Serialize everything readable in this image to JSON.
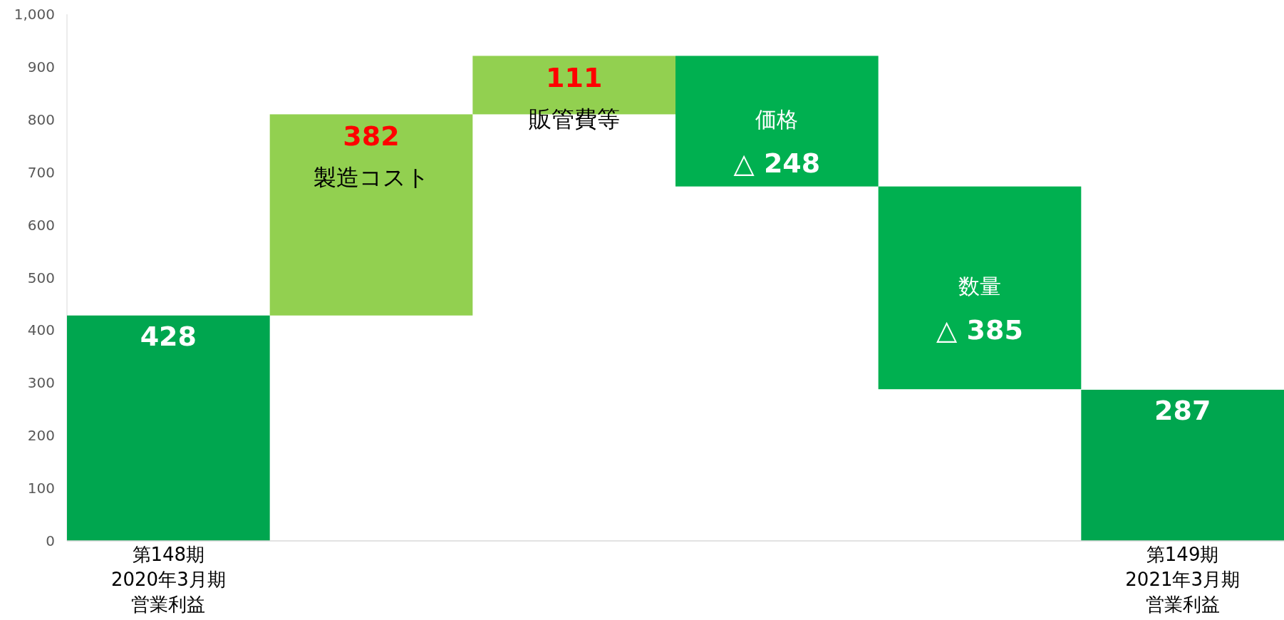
{
  "chart_data": {
    "type": "bar",
    "categories": [
      "第148期2020年3月期営業利益",
      "製造コスト",
      "販管費等",
      "価格",
      "数量",
      "第149期2021年3月期営業利益"
    ],
    "values": [
      428,
      382,
      111,
      -248,
      -385,
      287
    ],
    "base": [
      0,
      428,
      810,
      921,
      673,
      0
    ],
    "colors": [
      "#00a64f",
      "#92d050",
      "#92d050",
      "#00b050",
      "#00b050",
      "#00a64f"
    ],
    "value_labels": [
      "428",
      "382",
      "111",
      "△ 248",
      "△ 385",
      "287"
    ],
    "ylim": [
      0,
      1000
    ],
    "yticks": [
      0,
      100,
      200,
      300,
      400,
      500,
      600,
      700,
      800,
      900,
      {
        "value": 1000,
        "label": "1,000"
      }
    ],
    "grid": false
  }
}
